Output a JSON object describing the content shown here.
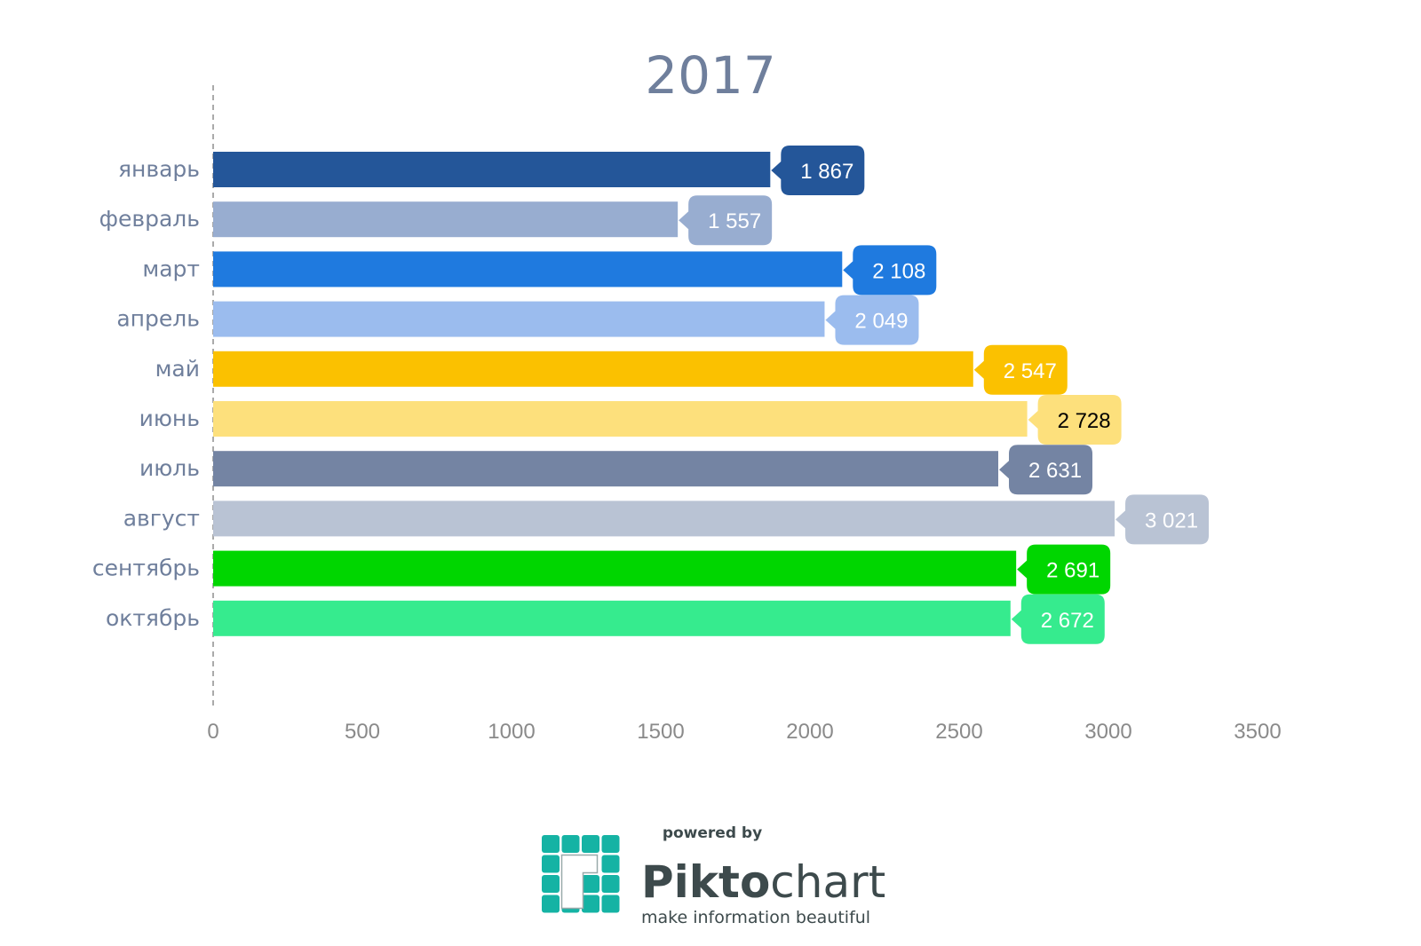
{
  "chart_data": {
    "type": "bar",
    "orientation": "horizontal",
    "title": "2017",
    "categories": [
      "январь",
      "февраль",
      "март",
      "апрель",
      "май",
      "июнь",
      "июль",
      "август",
      "сентябрь",
      "октябрь"
    ],
    "values": [
      1867,
      1557,
      2108,
      2049,
      2547,
      2728,
      2631,
      3021,
      2691,
      2672
    ],
    "value_labels": [
      "1 867",
      "1 557",
      "2 108",
      "2 049",
      "2 547",
      "2 728",
      "2 631",
      "3 021",
      "2 691",
      "2 672"
    ],
    "colors": [
      "#245699",
      "#98add0",
      "#1f7adf",
      "#9bbcee",
      "#fbc100",
      "#fde07c",
      "#7484a3",
      "#b9c3d4",
      "#00d600",
      "#36eb8e"
    ],
    "label_text_colors": [
      "#ffffff",
      "#ffffff",
      "#ffffff",
      "#ffffff",
      "#ffffff",
      "#000000",
      "#ffffff",
      "#ffffff",
      "#ffffff",
      "#ffffff"
    ],
    "xlim": [
      0,
      3500
    ],
    "xticks": [
      0,
      500,
      1000,
      1500,
      2000,
      2500,
      3000,
      3500
    ],
    "xlabel": "",
    "ylabel": "",
    "grid": false
  },
  "footer": {
    "powered_by": "powered by",
    "brand_bold": "Pikto",
    "brand_light": "chart",
    "tagline": "make information beautiful"
  }
}
